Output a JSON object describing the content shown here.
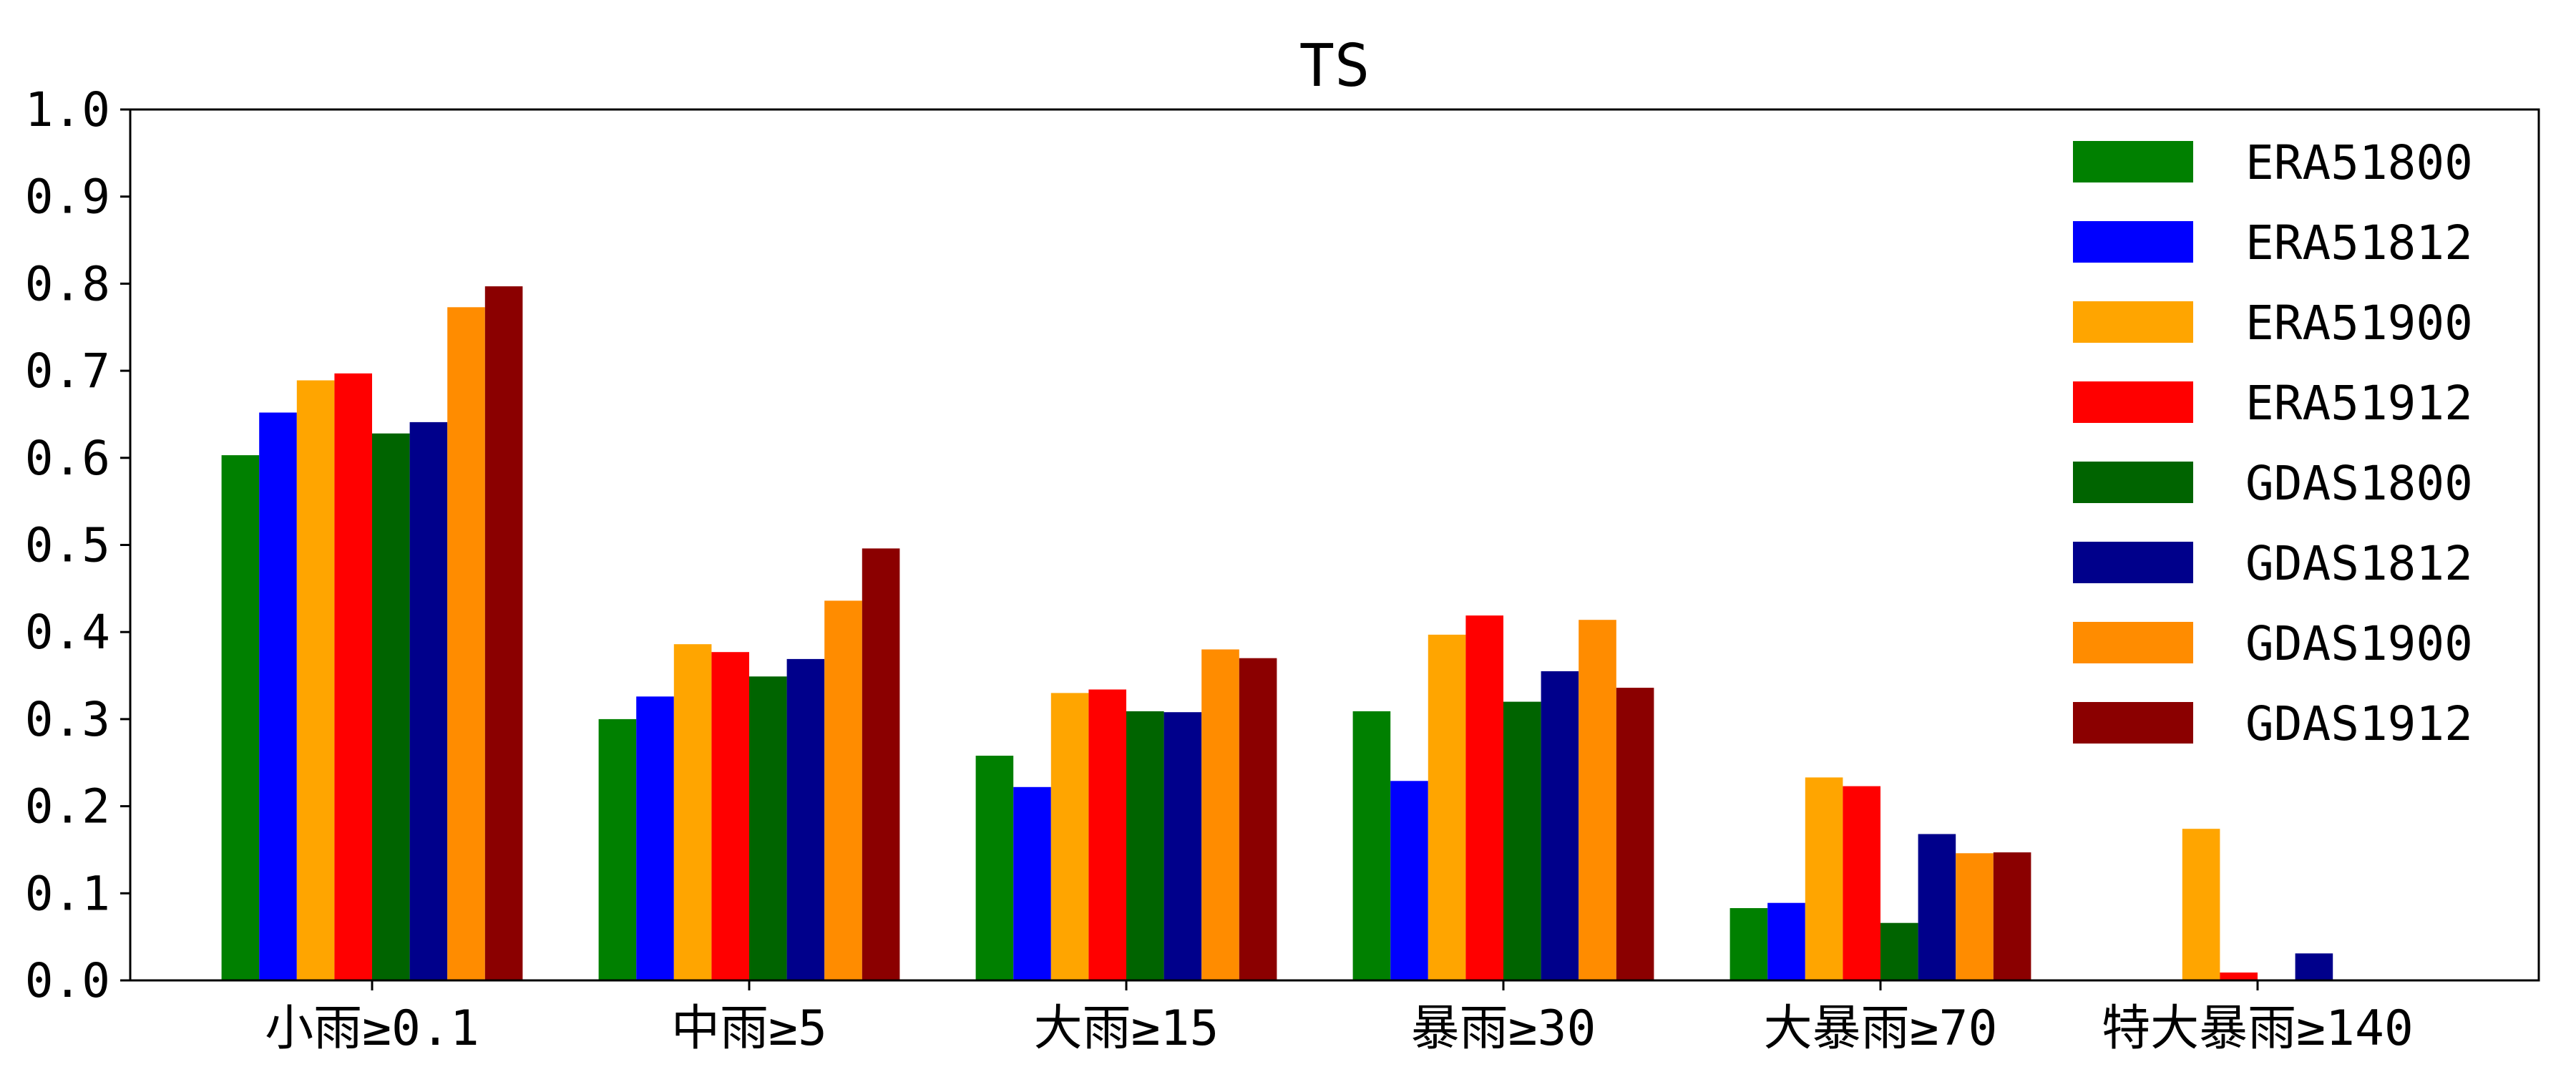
{
  "chart_data": {
    "type": "bar",
    "title": "TS",
    "xlabel": "",
    "ylabel": "",
    "ylim": [
      0.0,
      1.0
    ],
    "yticks": [
      "0.0",
      "0.1",
      "0.2",
      "0.3",
      "0.4",
      "0.5",
      "0.6",
      "0.7",
      "0.8",
      "0.9",
      "1.0"
    ],
    "grid": false,
    "legend_position": "top-right",
    "categories": [
      "小雨≥0.1",
      "中雨≥5",
      "大雨≥15",
      "暴雨≥30",
      "大暴雨≥70",
      "特大暴雨≥140"
    ],
    "series": [
      {
        "name": "ERA51800",
        "color": "#008000",
        "values": [
          0.603,
          0.3,
          0.258,
          0.309,
          0.083,
          0.0
        ]
      },
      {
        "name": "ERA51812",
        "color": "#0000ff",
        "values": [
          0.652,
          0.326,
          0.222,
          0.229,
          0.089,
          0.0
        ]
      },
      {
        "name": "ERA51900",
        "color": "#ffa500",
        "values": [
          0.689,
          0.386,
          0.33,
          0.397,
          0.233,
          0.174
        ]
      },
      {
        "name": "ERA51912",
        "color": "#ff0000",
        "values": [
          0.697,
          0.377,
          0.334,
          0.419,
          0.223,
          0.009
        ]
      },
      {
        "name": "GDAS1800",
        "color": "#006400",
        "values": [
          0.628,
          0.349,
          0.309,
          0.32,
          0.066,
          0.0
        ]
      },
      {
        "name": "GDAS1812",
        "color": "#00008b",
        "values": [
          0.641,
          0.369,
          0.308,
          0.355,
          0.168,
          0.031
        ]
      },
      {
        "name": "GDAS1900",
        "color": "#ff8c00",
        "values": [
          0.773,
          0.436,
          0.38,
          0.414,
          0.146,
          0.0
        ]
      },
      {
        "name": "GDAS1912",
        "color": "#8b0000",
        "values": [
          0.797,
          0.496,
          0.37,
          0.336,
          0.147,
          0.0
        ]
      }
    ]
  }
}
